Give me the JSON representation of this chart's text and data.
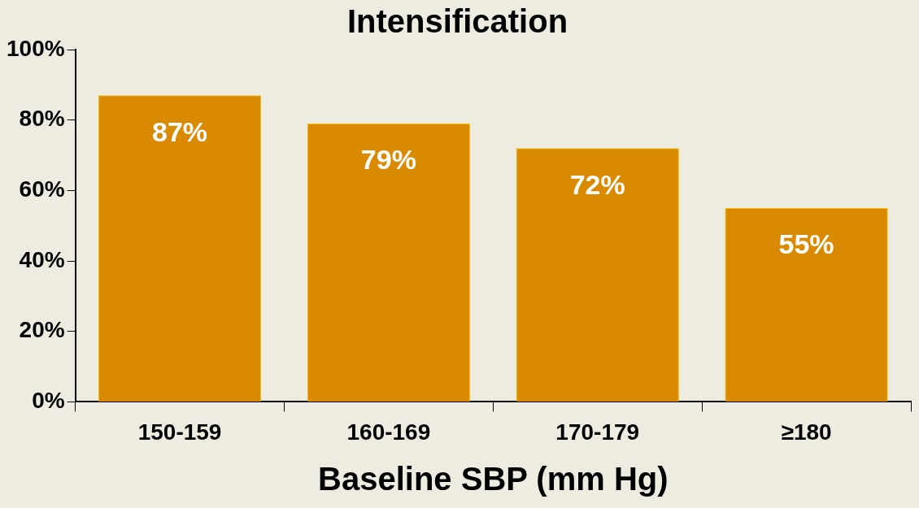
{
  "chart_data": {
    "type": "bar",
    "title": "Intensification",
    "xlabel": "Baseline SBP (mm Hg)",
    "categories": [
      "150-159",
      "160-169",
      "170-179",
      "≥180"
    ],
    "values": [
      87,
      79,
      72,
      55
    ],
    "value_labels": [
      "87%",
      "79%",
      "72%",
      "55%"
    ],
    "color": "#d98a00",
    "ylim": [
      0,
      100
    ],
    "yticks": [
      {
        "value": 0,
        "label": "0%"
      },
      {
        "value": 20,
        "label": "20%"
      },
      {
        "value": 40,
        "label": "40%"
      },
      {
        "value": 60,
        "label": "60%"
      },
      {
        "value": 80,
        "label": "80%"
      },
      {
        "value": 100,
        "label": "100%"
      }
    ],
    "grid": false
  }
}
